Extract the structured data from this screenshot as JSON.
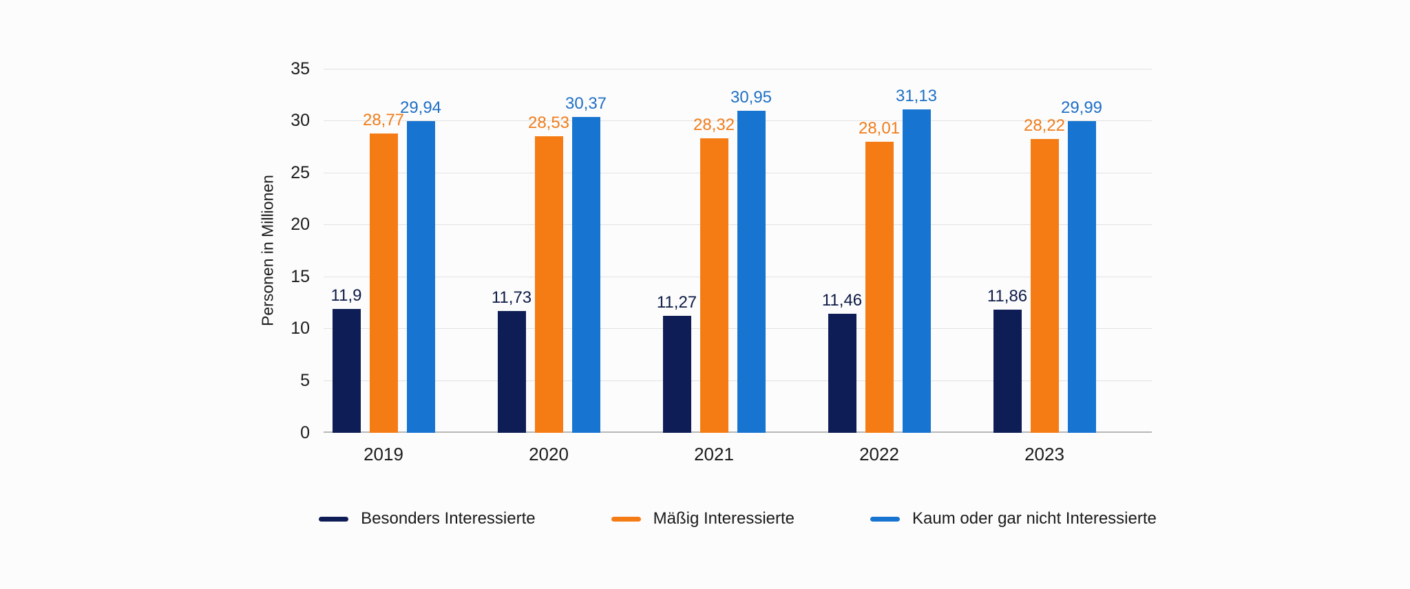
{
  "chart_data": {
    "type": "bar",
    "title": "",
    "xlabel": "",
    "ylabel": "Personen in Millionen",
    "ylim": [
      0,
      35
    ],
    "y_ticks": [
      "0",
      "5",
      "10",
      "15",
      "20",
      "25",
      "30",
      "35"
    ],
    "grid": true,
    "legend_position": "bottom",
    "categories": [
      "2019",
      "2020",
      "2021",
      "2022",
      "2023"
    ],
    "series": [
      {
        "name": "Besonders Interessierte",
        "color": "#0e1d55",
        "label_color": "#0d1a45",
        "values": [
          11.9,
          11.73,
          11.27,
          11.46,
          11.86
        ],
        "labels": [
          "11,9",
          "11,73",
          "11,27",
          "11,46",
          "11,86"
        ]
      },
      {
        "name": "Mäßig Interessierte",
        "color": "#f57c14",
        "label_color": "#f07c1a",
        "values": [
          28.77,
          28.53,
          28.32,
          28.01,
          28.22
        ],
        "labels": [
          "28,77",
          "28,53",
          "28,32",
          "28,01",
          "28,22"
        ]
      },
      {
        "name": "Kaum oder gar nicht Interessierte",
        "color": "#1774d1",
        "label_color": "#1f6fc4",
        "values": [
          29.94,
          30.37,
          30.95,
          31.13,
          29.99
        ],
        "labels": [
          "29,94",
          "30,37",
          "30,95",
          "31,13",
          "29,99"
        ]
      }
    ]
  }
}
